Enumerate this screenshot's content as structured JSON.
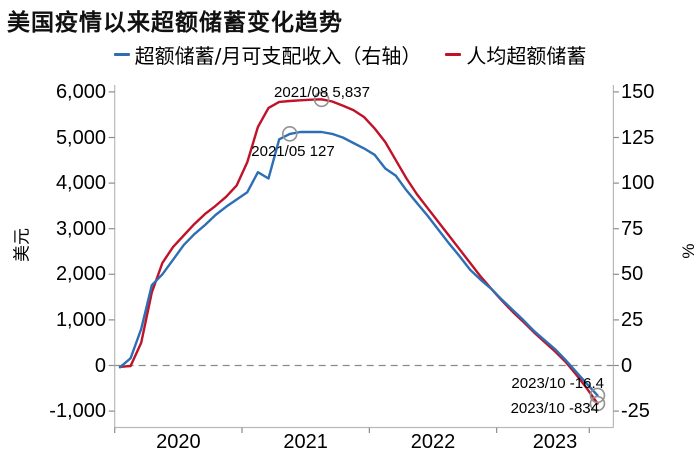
{
  "title": "美国疫情以来超额储蓄变化趋势",
  "legend": {
    "items": [
      {
        "label": "超额储蓄/月可支配收入（右轴）",
        "color": "#2c6fb5"
      },
      {
        "label": "人均超额储蓄",
        "color": "#c01228"
      }
    ]
  },
  "chart_data": {
    "type": "line",
    "title": "美国疫情以来超额储蓄变化趋势",
    "legend_position": "top",
    "grid": false,
    "zero_line_dashed": true,
    "x_months": [
      "2020-01",
      "2020-02",
      "2020-03",
      "2020-04",
      "2020-05",
      "2020-06",
      "2020-07",
      "2020-08",
      "2020-09",
      "2020-10",
      "2020-11",
      "2020-12",
      "2021-01",
      "2021-02",
      "2021-03",
      "2021-04",
      "2021-05",
      "2021-06",
      "2021-07",
      "2021-08",
      "2021-09",
      "2021-10",
      "2021-11",
      "2021-12",
      "2022-01",
      "2022-02",
      "2022-03",
      "2022-04",
      "2022-05",
      "2022-06",
      "2022-07",
      "2022-08",
      "2022-09",
      "2022-10",
      "2022-11",
      "2022-12",
      "2023-01",
      "2023-02",
      "2023-03",
      "2023-04",
      "2023-05",
      "2023-06",
      "2023-07",
      "2023-08",
      "2023-09",
      "2023-10"
    ],
    "series": [
      {
        "name": "人均超额储蓄",
        "axis": "left",
        "unit": "美元",
        "color": "#c01228",
        "values": [
          -30,
          -10,
          500,
          1600,
          2250,
          2600,
          2850,
          3100,
          3320,
          3500,
          3700,
          3950,
          4460,
          5230,
          5650,
          5780,
          5800,
          5815,
          5830,
          5837,
          5790,
          5700,
          5600,
          5450,
          5200,
          4900,
          4500,
          4100,
          3750,
          3450,
          3150,
          2850,
          2550,
          2250,
          1950,
          1680,
          1420,
          1180,
          960,
          730,
          520,
          310,
          80,
          -200,
          -500,
          -834
        ]
      },
      {
        "name": "超额储蓄/月可支配收入（右轴）",
        "axis": "right",
        "unit": "%",
        "color": "#2c6fb5",
        "values": [
          -1,
          4,
          20,
          44,
          50,
          58,
          66,
          72,
          77,
          82.5,
          87,
          91,
          95,
          106,
          102.5,
          124,
          127,
          128,
          128,
          128,
          127,
          125,
          122,
          119,
          115.5,
          108,
          104,
          96,
          89,
          82,
          74.5,
          67,
          60,
          52.5,
          47,
          42,
          36,
          30.5,
          25,
          19,
          14,
          9,
          3,
          -3.5,
          -10,
          -16.4
        ]
      }
    ],
    "left_axis": {
      "title": "美元",
      "tick_values": [
        6000,
        5000,
        4000,
        3000,
        2000,
        1000,
        0,
        -1000
      ],
      "tick_labels": [
        "6,000",
        "5,000",
        "4,000",
        "3,000",
        "2,000",
        "1,000",
        "0",
        "-1,000"
      ],
      "range": [
        -1370,
        6160
      ]
    },
    "right_axis": {
      "title": "%",
      "tick_values": [
        150,
        125,
        100,
        75,
        50,
        25,
        0,
        -25
      ],
      "tick_labels": [
        "150",
        "125",
        "100",
        "75",
        "50",
        "25",
        "0",
        "-25"
      ],
      "range": [
        -34.2,
        154
      ]
    },
    "x_axis": {
      "tick_labels": [
        "2020",
        "2021",
        "2022",
        "2023"
      ]
    },
    "annotations": [
      {
        "text": "2021/08 5,837",
        "series": "人均超额储蓄",
        "x": "2021-08",
        "value": 5837,
        "marker": "circle"
      },
      {
        "text": "2021/05 127",
        "series": "超额储蓄/月可支配收入（右轴）",
        "x": "2021-05",
        "value": 127,
        "marker": "circle"
      },
      {
        "text": "2023/10 -16.4",
        "series": "超额储蓄/月可支配收入（右轴）",
        "x": "2023-10",
        "value": -16.4,
        "marker": "circle"
      },
      {
        "text": "2023/10 -834",
        "series": "人均超额储蓄",
        "x": "2023-10",
        "value": -834,
        "marker": "circle"
      }
    ]
  }
}
